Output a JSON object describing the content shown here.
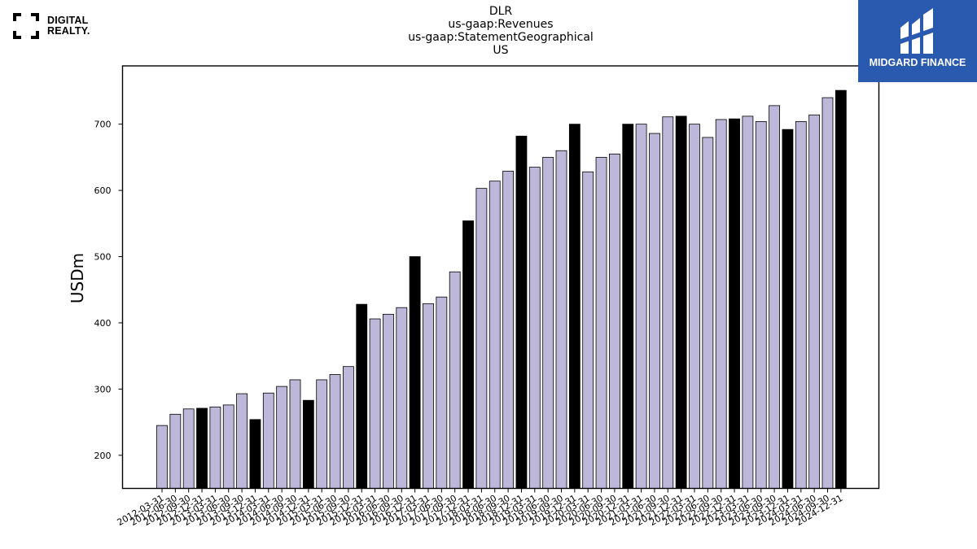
{
  "header": {
    "title_lines": [
      "DLR",
      "us-gaap:Revenues",
      "us-gaap:StatementGeographical",
      "US"
    ]
  },
  "logo": {
    "line1": "DIGITAL",
    "line2": "REALTY."
  },
  "badge": {
    "name": "MIDGARD FINANCE",
    "background_color": "#2a59b0"
  },
  "colors": {
    "bar_default": "#bdb8d9",
    "bar_highlight": "#000000"
  },
  "chart_data": {
    "type": "bar",
    "title": "DLR\nus-gaap:Revenues\nus-gaap:StatementGeographical\nUS",
    "xlabel": "",
    "ylabel": "USDm",
    "ylim": [
      150,
      788
    ],
    "yticks": [
      200,
      300,
      400,
      500,
      600,
      700
    ],
    "grid": false,
    "highlight_rule": "fiscal year-end (12-31) periods drawn in black",
    "categories": [
      "2012-03-31",
      "2012-06-30",
      "2012-09-30",
      "2012-12-31",
      "2013-03-31",
      "2013-06-30",
      "2013-09-30",
      "2013-12-31",
      "2014-03-31",
      "2014-06-30",
      "2014-09-30",
      "2014-12-31",
      "2015-03-31",
      "2015-06-30",
      "2015-09-30",
      "2015-12-31",
      "2016-03-31",
      "2016-06-30",
      "2016-09-30",
      "2016-12-31",
      "2017-03-31",
      "2017-06-30",
      "2017-09-30",
      "2017-12-31",
      "2018-03-31",
      "2018-06-30",
      "2018-09-30",
      "2018-12-31",
      "2019-03-31",
      "2019-06-30",
      "2019-09-30",
      "2019-12-31",
      "2020-03-31",
      "2020-06-30",
      "2020-09-30",
      "2020-12-31",
      "2021-03-31",
      "2021-06-30",
      "2021-09-30",
      "2021-12-31",
      "2022-03-31",
      "2022-06-30",
      "2022-09-30",
      "2022-12-31",
      "2023-03-31",
      "2023-06-30",
      "2023-09-30",
      "2023-12-31",
      "2024-03-31",
      "2024-06-30",
      "2024-09-30",
      "2024-12-31"
    ],
    "values": [
      245,
      262,
      270,
      271,
      273,
      276,
      293,
      254,
      294,
      304,
      314,
      283,
      314,
      322,
      334,
      428,
      406,
      413,
      423,
      500,
      429,
      439,
      477,
      554,
      603,
      614,
      629,
      682,
      635,
      650,
      660,
      700,
      628,
      650,
      655,
      700,
      700,
      686,
      711,
      712,
      700,
      680,
      707,
      708,
      712,
      704,
      728,
      692,
      704,
      714,
      740,
      751
    ],
    "highlight": [
      false,
      false,
      false,
      true,
      false,
      false,
      false,
      true,
      false,
      false,
      false,
      true,
      false,
      false,
      false,
      true,
      false,
      false,
      false,
      true,
      false,
      false,
      false,
      true,
      false,
      false,
      false,
      true,
      false,
      false,
      false,
      true,
      false,
      false,
      false,
      true,
      false,
      false,
      false,
      true,
      false,
      false,
      false,
      true,
      false,
      false,
      false,
      true,
      false,
      false,
      false,
      true
    ]
  }
}
